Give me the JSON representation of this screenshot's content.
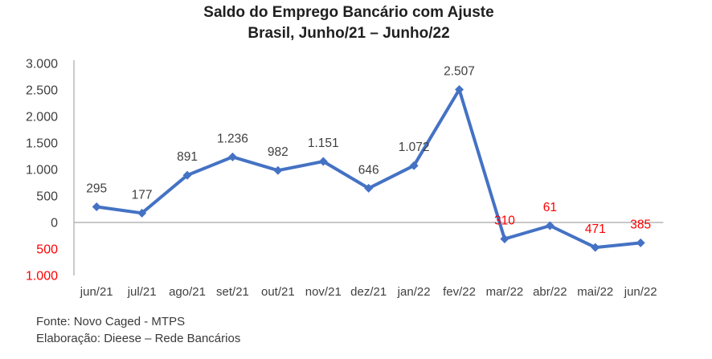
{
  "chart_data": {
    "type": "line",
    "title": "Saldo do Emprego Bancário com Ajuste",
    "subtitle": "Brasil, Junho/21 – Junho/22",
    "categories": [
      "jun/21",
      "jul/21",
      "ago/21",
      "set/21",
      "out/21",
      "nov/21",
      "dez/21",
      "jan/22",
      "fev/22",
      "mar/22",
      "abr/22",
      "mai/22",
      "jun/22"
    ],
    "series": [
      {
        "name": "Saldo do Emprego Bancário com Ajuste",
        "values": [
          295,
          177,
          891,
          1236,
          982,
          1151,
          646,
          1072,
          2507,
          -310,
          -61,
          -471,
          -385
        ]
      }
    ],
    "point_labels": [
      "295",
      "177",
      "891",
      "1.236",
      "982",
      "1.151",
      "646",
      "1.072",
      "2.507",
      "310",
      "61",
      "471",
      "385"
    ],
    "ylim": [
      -1000,
      3000
    ],
    "ytick_step": 500,
    "y_ticks": [
      {
        "label": "3.000",
        "value": 3000
      },
      {
        "label": "2.500",
        "value": 2500
      },
      {
        "label": "2.000",
        "value": 2000
      },
      {
        "label": "1.500",
        "value": 1500
      },
      {
        "label": "1.000",
        "value": 1000
      },
      {
        "label": "500",
        "value": 500
      },
      {
        "label": "0",
        "value": 0
      },
      {
        "label": "500",
        "value": -500
      },
      {
        "label": "1.000",
        "value": -1000
      }
    ],
    "legend": "none",
    "grid": "zero-line-only",
    "colors": {
      "line": "#4472C4",
      "marker": "#4472C4",
      "positive_label": "#3F3F3F",
      "negative_label": "#FF0000",
      "axis_label": "#404040",
      "negative_axis_label": "#FF0000",
      "zero_line": "#A6A6A6",
      "axis_line": "#AFAFAF",
      "title": "#1F1F1F"
    }
  },
  "footer": {
    "source": "Fonte: Novo Caged - MTPS",
    "elaboration": "Elaboração: Dieese – Rede Bancários"
  }
}
